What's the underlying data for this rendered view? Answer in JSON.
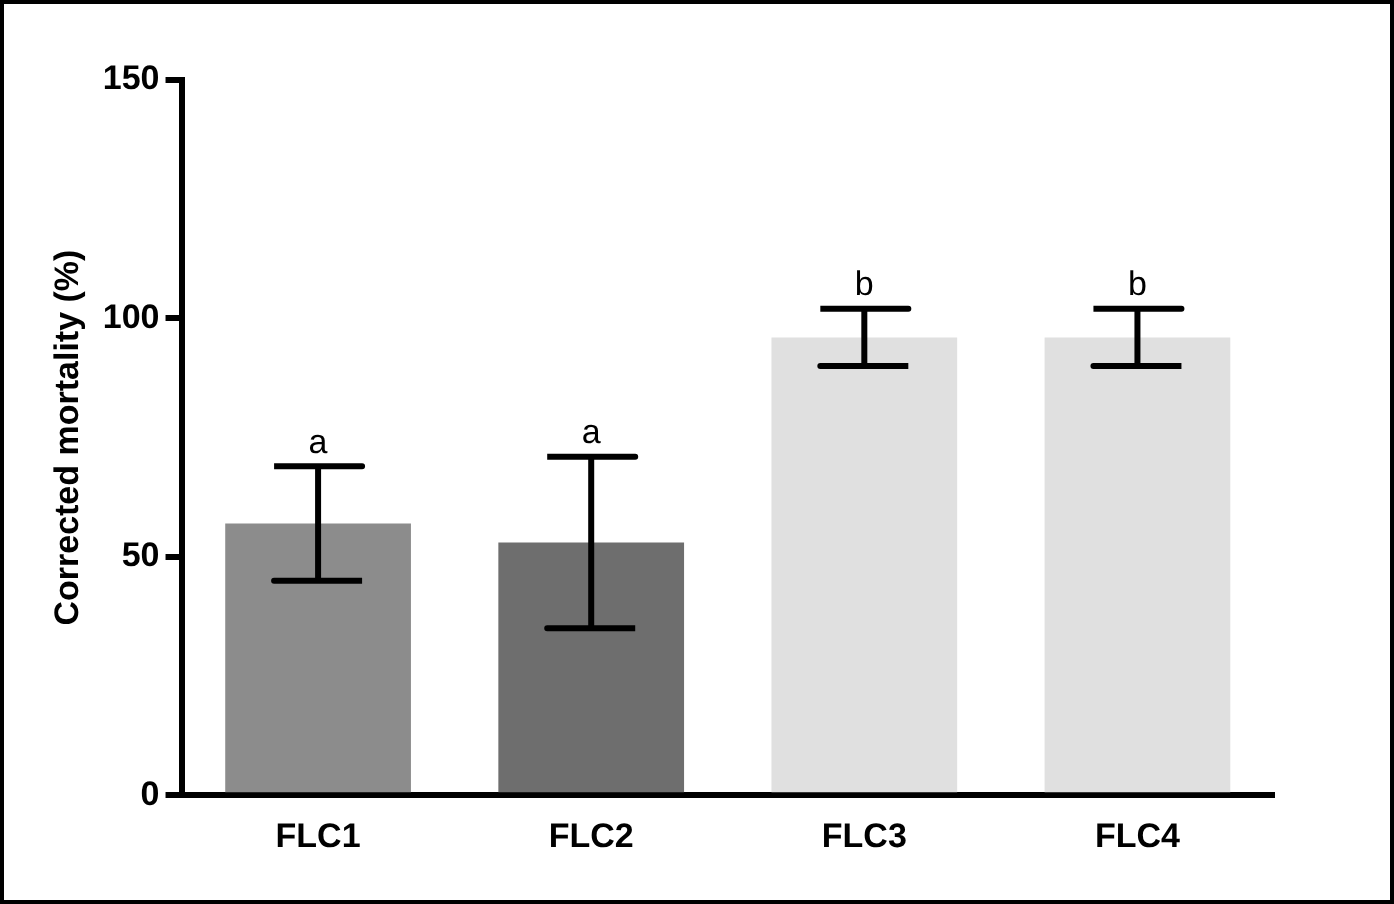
{
  "chart_data": {
    "type": "bar",
    "ylabel": "Corrected mortality (%)",
    "categories": [
      "FLC1",
      "FLC2",
      "FLC3",
      "FLC4"
    ],
    "values": [
      57,
      53,
      96,
      96
    ],
    "colors": [
      "#8c8c8c",
      "#6e6e6e",
      "#e0e0e0",
      "#e0e0e0"
    ],
    "errors": [
      12,
      18,
      6,
      6
    ],
    "ylim": [
      0,
      150
    ],
    "yticks": [
      0,
      50,
      100,
      150
    ],
    "grid": false,
    "legend": false,
    "annotations": [
      {
        "text": "a",
        "x": "FLC1",
        "y": 69
      },
      {
        "text": "a",
        "x": "FLC2",
        "y": 71
      },
      {
        "text": "b",
        "x": "FLC3",
        "y": 102
      },
      {
        "text": "b",
        "x": "FLC4",
        "y": 102
      }
    ]
  }
}
